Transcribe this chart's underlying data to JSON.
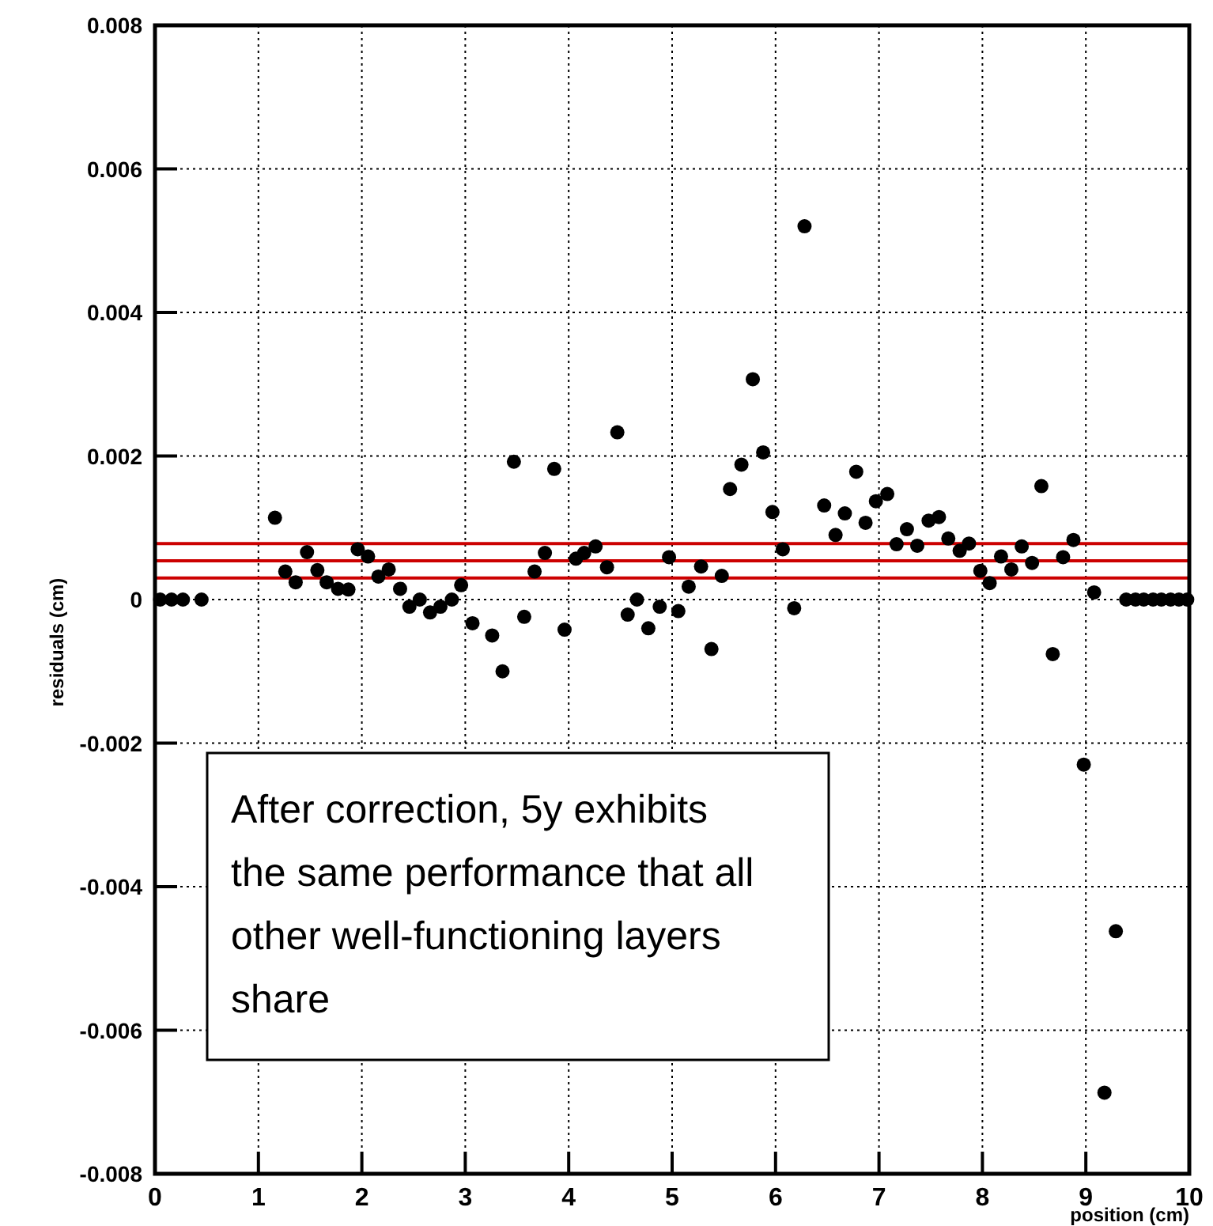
{
  "chart_data": {
    "type": "scatter",
    "xlabel": "position (cm)",
    "ylabel": "residuals (cm)",
    "xlim": [
      0,
      10
    ],
    "xticks": [
      0,
      1,
      2,
      3,
      4,
      5,
      6,
      7,
      8,
      9,
      10
    ],
    "ylim": [
      -0.008,
      0.008
    ],
    "yticks": [
      -0.008,
      -0.006,
      -0.004,
      -0.002,
      0,
      0.002,
      0.004,
      0.006,
      0.008
    ],
    "grid": true,
    "marker": "circle",
    "series": [
      {
        "color": "#000000",
        "x": [
          0.05,
          0.16,
          0.27,
          0.45,
          1.16,
          1.26,
          1.36,
          1.47,
          1.57,
          1.66,
          1.77,
          1.87,
          1.96,
          2.06,
          2.16,
          2.26,
          2.37,
          2.46,
          2.56,
          2.66,
          2.76,
          2.87,
          2.96,
          3.07,
          3.26,
          3.36,
          3.47,
          3.57,
          3.67,
          3.77,
          3.86,
          3.96,
          4.07,
          4.15,
          4.26,
          4.37,
          4.47,
          4.57,
          4.66,
          4.77,
          4.88,
          4.97,
          5.06,
          5.16,
          5.28,
          5.38,
          5.48,
          5.56,
          5.67,
          5.78,
          5.88,
          5.97,
          6.07,
          6.18,
          6.28,
          6.47,
          6.58,
          6.67,
          6.78,
          6.87,
          6.97,
          7.08,
          7.17,
          7.27,
          7.37,
          7.48,
          7.58,
          7.67,
          7.78,
          7.87,
          7.98,
          8.07,
          8.18,
          8.28,
          8.38,
          8.48,
          8.57,
          8.68,
          8.78,
          8.88,
          8.98,
          9.08,
          9.18,
          9.29,
          9.39,
          9.48,
          9.56,
          9.65,
          9.73,
          9.82,
          9.9,
          9.98
        ],
        "values": [
          0,
          0,
          0,
          0,
          0.00114,
          0.00039,
          0.00024,
          0.00066,
          0.00041,
          0.00024,
          0.00015,
          0.00014,
          0.0007,
          0.0006,
          0.00032,
          0.00042,
          0.00015,
          -0.0001,
          0,
          -0.00018,
          -0.0001,
          0,
          0.0002,
          -0.00033,
          -0.0005,
          -0.001,
          0.00192,
          -0.00024,
          0.00039,
          0.00065,
          0.00182,
          -0.00042,
          0.00057,
          0.00065,
          0.00074,
          0.00045,
          0.00233,
          -0.00021,
          0,
          -0.0004,
          -0.0001,
          0.00059,
          -0.00016,
          0.00018,
          0.00046,
          -0.00069,
          0.00033,
          0.00154,
          0.00188,
          0.00307,
          0.00205,
          0.00122,
          0.0007,
          -0.00012,
          0.0052,
          0.00131,
          0.0009,
          0.0012,
          0.00178,
          0.00107,
          0.00137,
          0.00147,
          0.00077,
          0.00098,
          0.00075,
          0.0011,
          0.00115,
          0.00085,
          0.00068,
          0.00078,
          0.0004,
          0.00023,
          0.0006,
          0.00042,
          0.00074,
          0.00051,
          0.00158,
          -0.00076,
          0.00059,
          0.00083,
          -0.0023,
          0.0001,
          -0.00687,
          -0.00462,
          0,
          0,
          0,
          0,
          0,
          0,
          0,
          0
        ]
      }
    ],
    "ref_lines": [
      {
        "axis": "y",
        "value": 0.00078,
        "color": "#cc0000"
      },
      {
        "axis": "y",
        "value": 0.00054,
        "color": "#cc0000"
      },
      {
        "axis": "y",
        "value": 0.0003,
        "color": "#cc0000"
      }
    ],
    "annotations": [
      "After correction, 5y exhibits the same performance that all other well-functioning layers share"
    ]
  }
}
